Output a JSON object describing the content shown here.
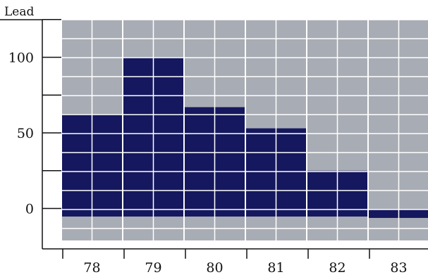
{
  "chart_data": {
    "type": "bar",
    "ylabel": "Lead",
    "categories": [
      "78",
      "79",
      "80",
      "81",
      "82",
      "83"
    ],
    "values": [
      62,
      100,
      67,
      53,
      25,
      -3
    ],
    "y_ticks": [
      0,
      50,
      100
    ],
    "ylim": [
      -22,
      124
    ],
    "grid": true,
    "colors": {
      "bar": "#15185e",
      "plot_bg": "#a8acb4",
      "grid": "#ffffff",
      "axis": "#111111"
    }
  }
}
